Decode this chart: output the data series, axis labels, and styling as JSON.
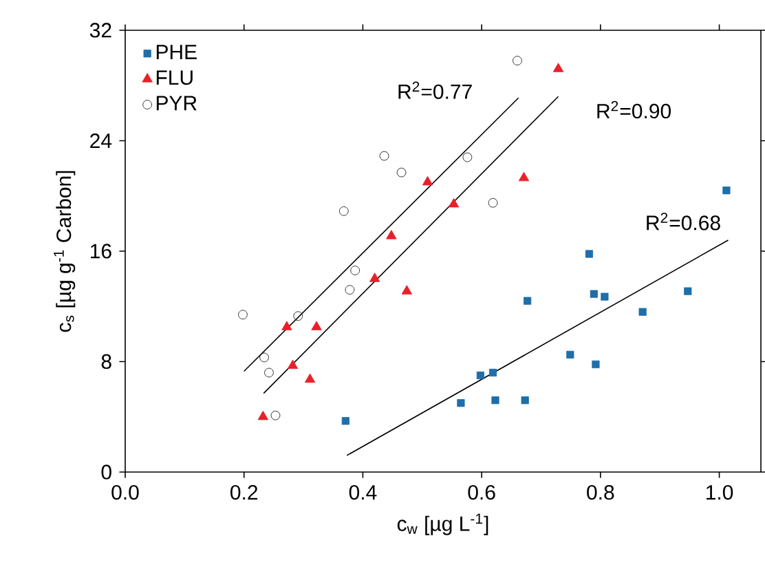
{
  "chart_data": {
    "type": "scatter",
    "xlabel": "c$_{w}$ [µg L$^{-1}$]",
    "ylabel": "c$_{s}$ [µg g$^{-1}$ Carbon]",
    "xlim": [
      0,
      1.07
    ],
    "ylim": [
      0,
      32
    ],
    "xticks": [
      {
        "value": 0,
        "label": "0.0"
      },
      {
        "value": 0.2,
        "label": "0.2"
      },
      {
        "value": 0.4,
        "label": "0.4"
      },
      {
        "value": 0.6,
        "label": "0.6"
      },
      {
        "value": 0.8,
        "label": "0.8"
      },
      {
        "value": 1.0,
        "label": "1.0"
      }
    ],
    "yticks": [
      0,
      8,
      16,
      24,
      32
    ],
    "grid": false,
    "legend": "top left",
    "series": [
      {
        "name": "PHE",
        "color": "#1f6eaa",
        "marker": "square",
        "x": [
          0.371,
          0.565,
          0.598,
          0.619,
          0.623,
          0.673,
          0.677,
          0.749,
          0.781,
          0.789,
          0.792,
          0.807,
          0.871,
          0.947,
          1.012
        ],
        "values": [
          3.7,
          5.0,
          7.0,
          7.2,
          5.2,
          5.2,
          12.4,
          8.5,
          15.8,
          12.9,
          7.8,
          12.7,
          11.6,
          13.1,
          20.4
        ]
      },
      {
        "name": "FLU",
        "color": "#e8202a",
        "marker": "triangle",
        "x": [
          0.232,
          0.272,
          0.282,
          0.311,
          0.322,
          0.42,
          0.448,
          0.474,
          0.509,
          0.553,
          0.671,
          0.729
        ],
        "values": [
          4.0,
          10.5,
          7.7,
          6.7,
          10.5,
          14.0,
          17.1,
          13.1,
          21.0,
          19.4,
          21.3,
          29.2
        ]
      },
      {
        "name": "PYR",
        "color": "#000000",
        "marker": "circle",
        "x": [
          0.198,
          0.234,
          0.242,
          0.253,
          0.291,
          0.368,
          0.378,
          0.387,
          0.436,
          0.465,
          0.576,
          0.619,
          0.66
        ],
        "values": [
          11.4,
          8.3,
          7.2,
          4.1,
          11.3,
          18.9,
          13.2,
          14.6,
          22.9,
          21.7,
          22.8,
          19.5,
          29.8
        ]
      },
      {
        "type": "line",
        "color": "#000000",
        "marker": "none",
        "x": [
          0.2,
          0.662
        ],
        "values": [
          7.3,
          27.1
        ]
      },
      {
        "type": "line",
        "color": "#000000",
        "marker": "none",
        "x": [
          0.233,
          0.729
        ],
        "values": [
          5.7,
          27.2
        ]
      },
      {
        "type": "line",
        "color": "#000000",
        "marker": "none",
        "x": [
          0.373,
          1.015
        ],
        "values": [
          1.2,
          16.8
        ]
      }
    ],
    "annotations": [
      "R$^{2}$=0.77",
      "R$^{2}$=0.90",
      "R$^{2}$=0.68"
    ]
  }
}
